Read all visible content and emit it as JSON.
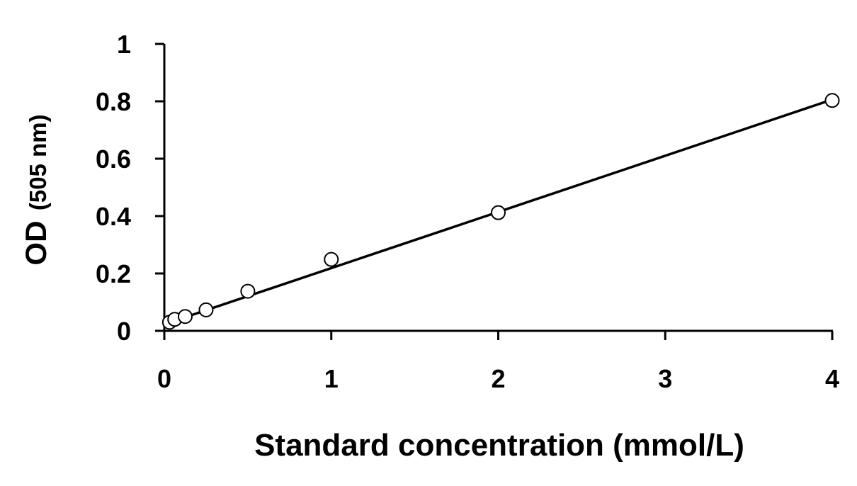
{
  "chart_data": {
    "type": "scatter",
    "title": "",
    "xlabel": "Standard concentration (mmol/L)",
    "ylabel": "OD",
    "ylabel_unit": "(505 nm)",
    "xlim": [
      0,
      4
    ],
    "ylim": [
      0,
      1
    ],
    "xticks": [
      0,
      1,
      2,
      3,
      4
    ],
    "xtick_labels": [
      "0",
      "1",
      "2",
      "3",
      "4"
    ],
    "yticks": [
      0,
      0.2,
      0.4,
      0.6,
      0.8,
      1
    ],
    "ytick_labels": [
      "0",
      "0.2",
      "0.4",
      "0.6",
      "0.8",
      "1"
    ],
    "grid": false,
    "legend": "none",
    "colors": {
      "line": "#000000",
      "marker_stroke": "#000000",
      "marker_fill": "#ffffff"
    },
    "series": [
      {
        "x": [
          0.03125,
          0.0625,
          0.125,
          0.25,
          0.5,
          1,
          2,
          4
        ],
        "y": [
          0.03,
          0.04,
          0.05,
          0.073,
          0.138,
          0.249,
          0.412,
          0.803
        ]
      }
    ],
    "trendline": {
      "type": "linear",
      "x": [
        0.03125,
        4
      ],
      "y": [
        0.029,
        0.806
      ]
    }
  }
}
